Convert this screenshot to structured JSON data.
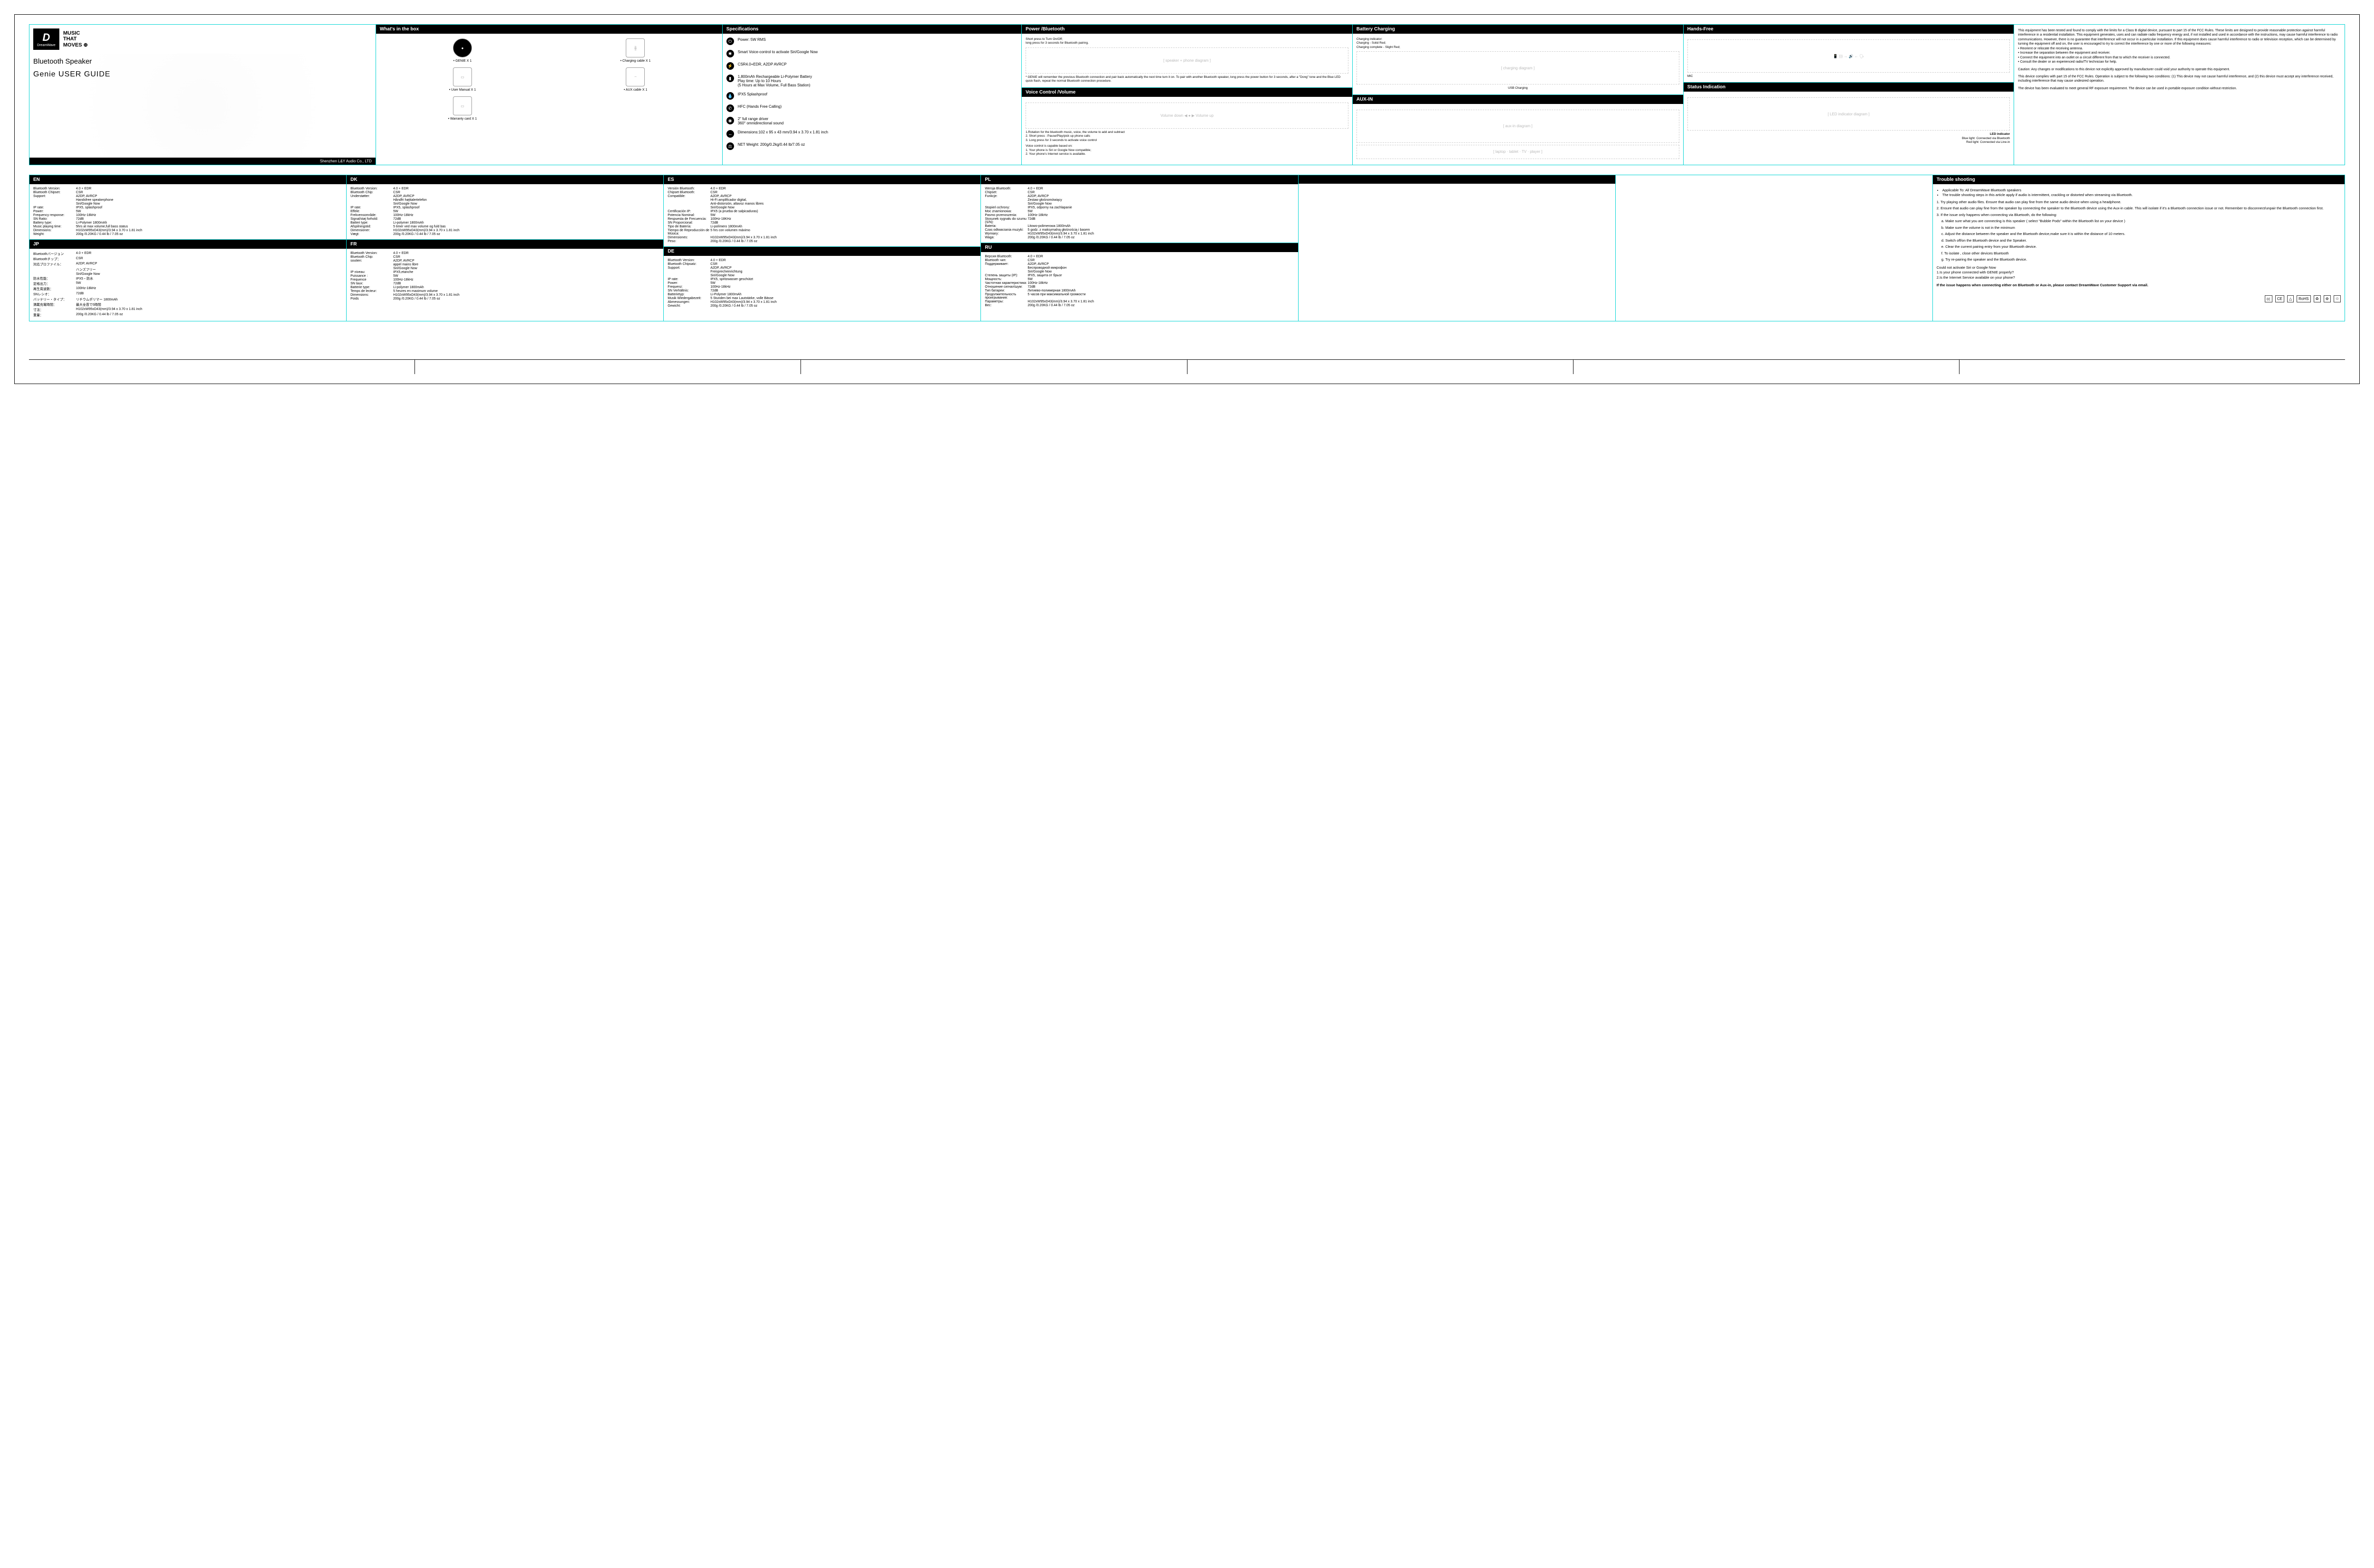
{
  "title": {
    "brand": "DreamWave",
    "logo_letter": "D",
    "tagline_l1": "MUSIC",
    "tagline_l2": "THAT",
    "tagline_l3": "MOVES ⊕",
    "product": "Bluetooth Speaker",
    "guide": "Genie USER GUIDE",
    "company": "Shenzhen L&Y Audio Co., LTD"
  },
  "box": {
    "header": "What's in the box",
    "items": [
      {
        "label": "GENIE X 1",
        "icon": "●"
      },
      {
        "label": "Charging cable X 1",
        "icon": "╫"
      },
      {
        "label": "User Manual X 1",
        "icon": "▭"
      },
      {
        "label": "AUX cable X 1",
        "icon": "⎯"
      },
      {
        "label": "Warranty card X 1",
        "icon": "▭"
      }
    ]
  },
  "specs": {
    "header": "Specifications",
    "items": [
      {
        "icon": "⏻",
        "text": "Power: 5W RMS"
      },
      {
        "icon": "✱",
        "text": "Smart Voice-control to activate Siri/Google Now"
      },
      {
        "icon": "⚡",
        "text": "CSR4.0+EDR, A2DP AVRCP"
      },
      {
        "icon": "▮",
        "text": "1,800mAh Rechargeable Li-Polymer Battery\nPlay time: Up to 10 Hours\n(5 Hours at Max Volume, Full Bass Station)"
      },
      {
        "icon": "💧",
        "text": "IPX5 Splashproof"
      },
      {
        "icon": "✆",
        "text": "HFC (Hands Free Calling)"
      },
      {
        "icon": "◉",
        "text": "2\" full range driver\n360° omnidirectional sound"
      },
      {
        "icon": "↔",
        "text": "Dimensions:102 x 95 x 43 mm/3.94 x 3.70 x 1.81 inch"
      },
      {
        "icon": "⚖",
        "text": "NET Weight: 200g/0.2kg/0.44 lb/7.05 oz"
      }
    ]
  },
  "power": {
    "header": "Power /Bluetooth",
    "note_top": "Short press to Turn On/Off;\nlong press for 3 seconds for Bluetooth pairing.",
    "note_bottom": "* GENIE will remember the previous Bluetooth connection and pair back automatically the next time turn it on. To pair with another Bluetooth speaker, long press the power button for 3 seconds, after a \"Dong\" tone and the Blue LED quick flash, repeat the normal Bluetooth connection procedure."
  },
  "voice": {
    "header": "Voice Control /Volume",
    "labels": {
      "down": "Volume down",
      "up": "Volume up"
    },
    "lines": [
      "1.Rotation for the bluetooth music, voice, the volume to add and subtract",
      "2. Short press : Pause/Play/pick up phone calls",
      "3. Long press for 3 seconds to activate voice control"
    ],
    "cap_title": "Voice control is capable based on:",
    "cap1": "1. Your phone is Siri or Google Now compatible;",
    "cap2": "2. Your phone's Internet service is available."
  },
  "charging": {
    "header": "Battery Charging",
    "ind1": "Charging indicator:",
    "ind2": "Charging - Solid Red;",
    "ind3": "Charging complete - Slight Red;",
    "usb": "USB Charging"
  },
  "aux": {
    "header": "AUX-IN"
  },
  "hands": {
    "header": "Hands-Free",
    "mic": "MIC"
  },
  "status": {
    "header": "Status Indication",
    "led": "LED indicator",
    "l1": "Blue light: Connected via Bluetooth",
    "l2": "Red light: Connected via Line-in"
  },
  "fcc": {
    "p1": "This equipment has been tested and found to comply with the limits for a Class B digital device, pursuant to part 15 of the FCC Rules. These limits are designed to provide reasonable protection against harmful interference in a residential installation. This equipment generates, uses and can radiate radio frequency energy and, if not installed and used in accordance with the instructions, may cause harmful interference to radio communications. However, there is no guarantee that interference will not occur in a particular installation. If this equipment does cause harmful interference to radio or television reception, which can be determined by turning the equipment off and on, the user is encouraged to try to correct the interference by one or more of the following measures:",
    "b1": "• Reorient or relocate the receiving antenna.",
    "b2": "• Increase the separation between the equipment and receiver.",
    "b3": "• Connect the equipment into an outlet on a circuit different from that to which the receiver is connected.",
    "b4": "• Consult the dealer or an experienced radio/TV technician for help.",
    "p2": "Caution: Any changes or modifications to this device not explicitly approved by manufacturer could void your authority to operate this equipment.",
    "p3": "This device complies with part 15 of the FCC Rules. Operation is subject to the following two conditions: (1) This device may not cause harmful interference, and (2) this device must accept any interference received, including interference that may cause undesired operation.",
    "p4": "The device has been evaluated to meet general RF exposure requirement. The device can be used in portable exposure condition without restriction."
  },
  "langs": {
    "EN": {
      "header": "EN",
      "rows": [
        [
          "Bluetooth Version:",
          "4.0 + EDR"
        ],
        [
          "Bluetooth Chipset:",
          "CSR"
        ],
        [
          "Support:",
          "A2DP, AVRCP"
        ],
        [
          "",
          "Handsfree speakerphone"
        ],
        [
          "",
          "Siri/Google Now"
        ],
        [
          "IP rate:",
          "IPX5, splashproof"
        ],
        [
          "Power:",
          "5W"
        ],
        [
          "Frequency response:",
          "100Hz-18kHz"
        ],
        [
          "SN Ratio:",
          "72dB"
        ],
        [
          "Battery type:",
          "Li-Polymer 1800mAh"
        ],
        [
          "Music playing time:",
          "5hrs at max volume,full bass status"
        ],
        [
          "Dimensions:",
          "H102xW95xD43(mm)/3.94 x 3.70 x 1.81 inch"
        ],
        [
          "Weight:",
          "200g /0.20KG / 0.44 lb / 7.05 oz"
        ]
      ]
    },
    "DK": {
      "header": "DK",
      "rows": [
        [
          "Bluetooth Version:",
          "4.0 + EDR"
        ],
        [
          "Bluetooth Chip:",
          "CSR"
        ],
        [
          "Understøtter:",
          "A2DP, AVRCP"
        ],
        [
          "",
          "Håndfri højttalertelefon"
        ],
        [
          "",
          "Siri/Google Now"
        ],
        [
          "IP rate:",
          "IPX5, splashproof"
        ],
        [
          "Effekt:",
          "5W"
        ],
        [
          "Frekvensområde:",
          "100Hz-18kHz"
        ],
        [
          "Signal/støj forhold:",
          "72dB"
        ],
        [
          "Batteri type:",
          "Li-polymer 1800mAh"
        ],
        [
          "Afspilningstid:",
          "5 timer ved max volume og fuld bas"
        ],
        [
          "Dimensioner:",
          "H102xW95xD43(mm)/3.94 x 3.70 x 1.81 inch"
        ],
        [
          "Vægt:",
          "200g /0.20KG / 0.44 lb / 7.05 oz"
        ]
      ]
    },
    "ES": {
      "header": "ES",
      "rows": [
        [
          "Versión Bluetooth:",
          "4.0 + EDR"
        ],
        [
          "Chipset Bluetooth:",
          "CSR"
        ],
        [
          "Compatible:",
          "A2DP, AVRCP"
        ],
        [
          "",
          "Hi-Fi amplificador digital,"
        ],
        [
          "",
          "Anti-distorsión, altavoz manos libres"
        ],
        [
          "",
          "Siri/Google Now"
        ],
        [
          "Certificación IP:",
          "IPX5 (a prueba de salpicaduras)"
        ],
        [
          "Potencia Nominal:",
          "5W"
        ],
        [
          "Respuesta de Frecuencia:",
          "100Hz-18KHz"
        ],
        [
          "SN Proporcional:",
          "72dB"
        ],
        [
          "Tipo de Batería:",
          "Li-polímero 1800mAh"
        ],
        [
          "Tiempo de Reproducción de Música:",
          "5 hrs con volumen máximo"
        ],
        [
          "Dimensiones:",
          "H102xW95xD43(mm)/3.94 x 3.70 x 1.81 inch"
        ],
        [
          "Peso:",
          "200g /0.20KG / 0.44 lb / 7.05 oz"
        ]
      ]
    },
    "PL": {
      "header": "PL",
      "rows": [
        [
          "Wersja Bluetooth:",
          "4.0 + EDR"
        ],
        [
          "Chipset:",
          "CSR"
        ],
        [
          "Funkcje:",
          "A2DP, AVRCP"
        ],
        [
          "",
          "Zestaw głośnomówiący"
        ],
        [
          "",
          "Siri/Google Now"
        ],
        [
          "Stopień ochrony:",
          "IPX5, odporny na zachlapanie"
        ],
        [
          "Moc znamionowa:",
          "5W"
        ],
        [
          "Pasmo przenoszenia:",
          "100Hz-18kHz"
        ],
        [
          "Stosunek sygnału do szumu (S/N):",
          "72dB"
        ],
        [
          "Bateria:",
          "Litowo-polimerowa 1800mAh"
        ],
        [
          "Czas odtwarzania muzyki:",
          "5 godz. z maksymalną głośnością i basem"
        ],
        [
          "Wymiary:",
          "H102xW95xD43(mm)/3.94 x 3.70 x 1.81 inch"
        ],
        [
          "Waga:",
          "200g /0.20KG / 0.44 lb / 7.05 oz"
        ]
      ]
    },
    "JP": {
      "header": "JP",
      "rows": [
        [
          "Bluetoothバージョン",
          "4.0 + EDR"
        ],
        [
          "Bluetoothチップ：",
          "CSR"
        ],
        [
          "対応プロファイル：",
          "A2DP, AVRCP"
        ],
        [
          "",
          "ハンズフリー"
        ],
        [
          "",
          "Siri/Google Now"
        ],
        [
          "防水性能：",
          "IPX5・防水"
        ],
        [
          "定格出力：",
          "5W"
        ],
        [
          "再生周波数：",
          "100Hz-18kHz"
        ],
        [
          "SNレシオ：",
          "72dB"
        ],
        [
          "バッテリー・タイプ：",
          "リチウムポリマー 1800mAh"
        ],
        [
          "満載充電時間：",
          "最大全音で5時間"
        ],
        [
          "寸法：",
          "H102xW95xD43(mm)/3.94 x 3.70 x 1.81 inch"
        ],
        [
          "重量：",
          "200g /0.20KG / 0.44 lb / 7.05 oz"
        ]
      ]
    },
    "FR": {
      "header": "FR",
      "rows": [
        [
          "Bluetooth Version:",
          "4.0 + EDR"
        ],
        [
          "Bluetooth Chip:",
          "CSR"
        ],
        [
          "soutien:",
          "A2DP, AVRCP"
        ],
        [
          "",
          "appel mains libre"
        ],
        [
          "",
          "Siri/Google Now"
        ],
        [
          "IP niveau:",
          "IPX5,etanche"
        ],
        [
          "Puissance :",
          "5W"
        ],
        [
          "Frequence",
          "100Hz-18kHz"
        ],
        [
          "SN taux:",
          "72dB"
        ],
        [
          "Batterie type:",
          "Li-polymer 1800mAh"
        ],
        [
          "Temps de lecteur:",
          "5 heures en maximum volume"
        ],
        [
          "Dimensions:",
          "H102xW95xD43(mm)/3.94 x 3.70 x 1.81 inch"
        ],
        [
          "Poids",
          "200g /0.20KG / 0.44 lb / 7.05 oz"
        ]
      ]
    },
    "DE": {
      "header": "DE",
      "rows": [
        [
          "Bluetooth Version:",
          "4.0 + EDR"
        ],
        [
          "Bluetooth Chipsatz:",
          "CSR"
        ],
        [
          "Support:",
          "A2DP, AVRCP"
        ],
        [
          "",
          "Freisprecheinrichtung"
        ],
        [
          "",
          "Siri/Google Now"
        ],
        [
          "IP rate:",
          "IPX5, spritzwasser geschützt"
        ],
        [
          "Power:",
          "5W"
        ],
        [
          "Frequenz:",
          "100Hz-18kHz"
        ],
        [
          "SN Verhältnis:",
          "72dB"
        ],
        [
          "Batterietyp:",
          "Li-Polymer 1800mAh"
        ],
        [
          "Musik Wiedergabezeit:",
          "5 Stunden bei max Lautstärke, volle Bässe"
        ],
        [
          "Abmessungen:",
          "H102xW95xD43(mm)/3.94 x 3.70 x 1.81 inch"
        ],
        [
          "Gewicht:",
          "200g /0.20KG / 0.44 lb / 7.05 oz"
        ]
      ]
    },
    "RU": {
      "header": "RU",
      "rows": [
        [
          "Версия Bluetooth:",
          "4.0 + EDR"
        ],
        [
          "Bluetooth чип:",
          "CSR"
        ],
        [
          "Поддерживает:",
          "A2DP, AVRCP"
        ],
        [
          "",
          "Беспроводной микрофон"
        ],
        [
          "",
          "Siri/Google Now"
        ],
        [
          "Степень защиты (IP):",
          "IPX5, защита от брызг"
        ],
        [
          "Мощность:",
          "5W"
        ],
        [
          "Частотная характеристика:",
          "100Hz-18kHz"
        ],
        [
          "Отношение сигнал/шум:",
          "72dB"
        ],
        [
          "Тип батареи:",
          "Литиево-полимерная 1800mAh"
        ],
        [
          "Продолжительность проигрывания:",
          "5 часов при максимальной громкости"
        ],
        [
          "Параметры:",
          "H102xW95xD43(mm)/3.94 x 3.70 x 1.81 inch"
        ],
        [
          "Вес:",
          "200g /0.20KG / 0.44 lb / 7.05 oz"
        ]
      ]
    }
  },
  "ts": {
    "header": "Trouble shooting",
    "bullets": [
      "Applicable To: All DreamWave Bluetooth speakers",
      "The trouble shooting steps in this article apply if audio is intermittent, crackling or distorted when streaming via Bluetooth."
    ],
    "steps": [
      "1. Try playing other audio files. Ensure that audio can play fine from the same audio device when using a headphone.",
      "2. Ensure that audio can play fine from the speaker by connecting the speaker to the Bluetooth device using the Aux-in cable. This will isolate if it's a Bluetooth connection issue or not. Remember to disconnect/unpair the Bluetooth connection first.",
      "3. If the issue only happens when connecting via Bluetooth, do the following:"
    ],
    "sub": [
      "a. Make sure what you are connecting is this speaker ( select \"Bubble Pods\" within the Bluetooth list on your device )",
      "b. Make sure the volume is not in the minimum",
      "c. Adjust the distance between the speaker and the Bluetooth device,make sure it is within the distance of 10 meters.",
      "d. Switch off/on the Bluetooth device and the Speaker.",
      "e. Clear the current pairing entry from your Bluetooth device.",
      "f. To isolate , close other devices Bluetooth",
      "g. Try re-pairing the speaker and the Bluetooth device."
    ],
    "q_title": "Could not activate Siri or Google Now",
    "q1": "1.Is your phone connected with GENIE properly?",
    "q2": "2.Is the Internet Service available on your phone?",
    "final": "If the issue happens when connecting either on Bluetooth or Aux-in, please contact DreamWave Customer Support via email.",
    "certs": [
      "㏄",
      "CE",
      "△",
      "RoHS",
      "♻",
      "⚙",
      "♲"
    ]
  }
}
